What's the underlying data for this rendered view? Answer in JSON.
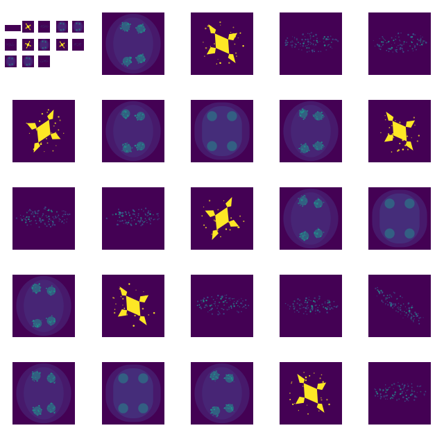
{
  "figure": {
    "background": "#ffffff",
    "colormap": [
      "#440154",
      "#3b528b",
      "#21918c",
      "#5ec962",
      "#fde725"
    ],
    "tiles": [
      {
        "kind": "mosaic"
      },
      {
        "kind": "dendrite-green"
      },
      {
        "kind": "filled-yellow",
        "angle": -35
      },
      {
        "kind": "dust-horizontal"
      },
      {
        "kind": "dust-horizontal"
      },
      {
        "kind": "filled-yellow",
        "angle": 25
      },
      {
        "kind": "dendrite-green"
      },
      {
        "kind": "blob-vertical"
      },
      {
        "kind": "dendrite-green"
      },
      {
        "kind": "filled-yellow",
        "angle": -35
      },
      {
        "kind": "dust-horizontal"
      },
      {
        "kind": "dust-horizontal"
      },
      {
        "kind": "filled-yellow",
        "angle": 25
      },
      {
        "kind": "dendrite-green"
      },
      {
        "kind": "blob-vertical"
      },
      {
        "kind": "dendrite-green"
      },
      {
        "kind": "filled-yellow",
        "angle": -35
      },
      {
        "kind": "dust-horizontal"
      },
      {
        "kind": "dust-horizontal"
      },
      {
        "kind": "dust-diagonal"
      },
      {
        "kind": "dendrite-green"
      },
      {
        "kind": "blob-vertical"
      },
      {
        "kind": "dendrite-green"
      },
      {
        "kind": "filled-yellow",
        "angle": -35
      },
      {
        "kind": "dust-horizontal"
      }
    ],
    "mosaic": [
      {
        "kind": "plain"
      },
      {
        "kind": "plain"
      },
      {
        "kind": "filled-yellow",
        "angle": -35
      },
      {
        "kind": "dust-horizontal"
      },
      {
        "kind": "dendrite-green"
      },
      {
        "kind": "dendrite-green"
      },
      {
        "kind": "dust-horizontal"
      },
      {
        "kind": "filled-yellow",
        "angle": 25
      },
      {
        "kind": "dendrite-green"
      },
      {
        "kind": "filled-yellow",
        "angle": -35
      },
      {
        "kind": "dust-horizontal"
      },
      {
        "kind": "dendrite-green"
      },
      {
        "kind": "dendrite-green"
      },
      {
        "kind": "dust-horizontal"
      }
    ]
  }
}
